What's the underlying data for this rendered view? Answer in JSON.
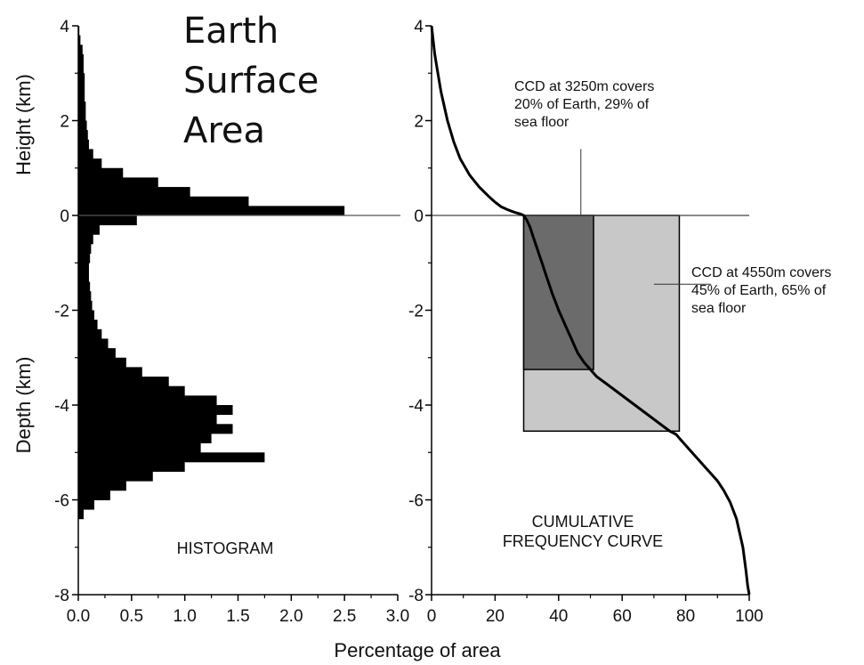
{
  "chart_data": [
    {
      "type": "bar",
      "orientation": "horizontal",
      "panel_label": "HISTOGRAM",
      "title_lines": [
        "Earth",
        "Surface",
        "Area"
      ],
      "ylabel_top": "Height (km)",
      "ylabel_bottom": "Depth (km)",
      "xlabel": "Percentage of area",
      "xlim": [
        0.0,
        3.0
      ],
      "ylim": [
        -8,
        4
      ],
      "x_ticks": [
        "0.0",
        "0.5",
        "1.0",
        "1.5",
        "2.0",
        "2.5",
        "3.0"
      ],
      "y_ticks": [
        "4",
        "2",
        "0",
        "-2",
        "-4",
        "-6",
        "-8"
      ],
      "grid": false,
      "bins_km": [
        4.0,
        3.8,
        3.6,
        3.4,
        3.2,
        3.0,
        2.8,
        2.6,
        2.4,
        2.2,
        2.0,
        1.8,
        1.6,
        1.4,
        1.2,
        1.0,
        0.8,
        0.6,
        0.4,
        0.2,
        0.0,
        -0.2,
        -0.4,
        -0.6,
        -0.8,
        -1.0,
        -1.2,
        -1.4,
        -1.6,
        -1.8,
        -2.0,
        -2.2,
        -2.4,
        -2.6,
        -2.8,
        -3.0,
        -3.2,
        -3.4,
        -3.6,
        -3.8,
        -4.0,
        -4.2,
        -4.4,
        -4.6,
        -4.8,
        -5.0,
        -5.2,
        -5.4,
        -5.6,
        -5.8,
        -6.0,
        -6.2
      ],
      "bin_width_km": 0.2,
      "values": [
        0.01,
        0.02,
        0.04,
        0.05,
        0.05,
        0.06,
        0.06,
        0.06,
        0.07,
        0.07,
        0.08,
        0.09,
        0.1,
        0.14,
        0.22,
        0.42,
        0.75,
        1.05,
        1.6,
        2.5,
        0.55,
        0.2,
        0.14,
        0.12,
        0.11,
        0.1,
        0.1,
        0.11,
        0.12,
        0.13,
        0.15,
        0.18,
        0.22,
        0.28,
        0.35,
        0.45,
        0.6,
        0.85,
        1.0,
        1.3,
        1.45,
        1.3,
        1.45,
        1.25,
        1.15,
        1.75,
        1.0,
        0.7,
        0.45,
        0.3,
        0.15,
        0.05
      ]
    },
    {
      "type": "line",
      "panel_label_lines": [
        "CUMULATIVE",
        "FREQUENCY CURVE"
      ],
      "xlim": [
        0,
        100
      ],
      "ylim": [
        -8,
        4
      ],
      "x_ticks": [
        "0",
        "20",
        "40",
        "60",
        "80",
        "100"
      ],
      "y_ticks": [
        "4",
        "2",
        "0",
        "-2",
        "-4",
        "-6",
        "-8"
      ],
      "grid": false,
      "series": [
        {
          "x": [
            0,
            0.5,
            1,
            2,
            3,
            4,
            5,
            7,
            9,
            12,
            15,
            18,
            20,
            22,
            24,
            26,
            28,
            29,
            30,
            31,
            32,
            33,
            34,
            35,
            36,
            37,
            38,
            39,
            40,
            41,
            42,
            43,
            44,
            45,
            46,
            48,
            50,
            52,
            55,
            58,
            61,
            64,
            67,
            70,
            73,
            75,
            77,
            78,
            80,
            82,
            84,
            86,
            88,
            90,
            92,
            94,
            96,
            98,
            99,
            99.5,
            100
          ],
          "y": [
            4.0,
            3.7,
            3.4,
            3.0,
            2.6,
            2.3,
            2.0,
            1.55,
            1.2,
            0.85,
            0.6,
            0.4,
            0.28,
            0.18,
            0.12,
            0.07,
            0.03,
            0.0,
            -0.1,
            -0.25,
            -0.45,
            -0.65,
            -0.85,
            -1.05,
            -1.25,
            -1.45,
            -1.65,
            -1.82,
            -2.0,
            -2.15,
            -2.3,
            -2.45,
            -2.6,
            -2.75,
            -2.9,
            -3.1,
            -3.25,
            -3.4,
            -3.55,
            -3.7,
            -3.85,
            -4.0,
            -4.15,
            -4.3,
            -4.45,
            -4.55,
            -4.62,
            -4.7,
            -4.85,
            -5.0,
            -5.15,
            -5.3,
            -5.45,
            -5.6,
            -5.8,
            -6.05,
            -6.4,
            -7.0,
            -7.5,
            -7.8,
            -8.0
          ]
        }
      ],
      "reference_lines": [
        {
          "y": 0
        }
      ],
      "annotations": [
        {
          "lines": [
            "CCD at 3250m covers",
            "20% of Earth, 29% of",
            "sea floor"
          ],
          "rect": {
            "x0": 29,
            "x1": 51,
            "y0": -3.25,
            "y1": 0
          },
          "leader": {
            "x": 47,
            "y_from": 1.4,
            "y_to": 0
          }
        },
        {
          "lines": [
            "CCD at 4550m covers",
            "45% of Earth, 65% of",
            "sea floor"
          ],
          "rect": {
            "x0": 29,
            "x1": 78,
            "y0": -4.55,
            "y1": 0
          },
          "leader": {
            "x_from": 88,
            "x_to": 70,
            "y": -1.45
          }
        }
      ],
      "colors": {
        "dark_region": "#6b6b6b",
        "light_region": "#c8c8c8",
        "line": "#000000"
      }
    }
  ]
}
